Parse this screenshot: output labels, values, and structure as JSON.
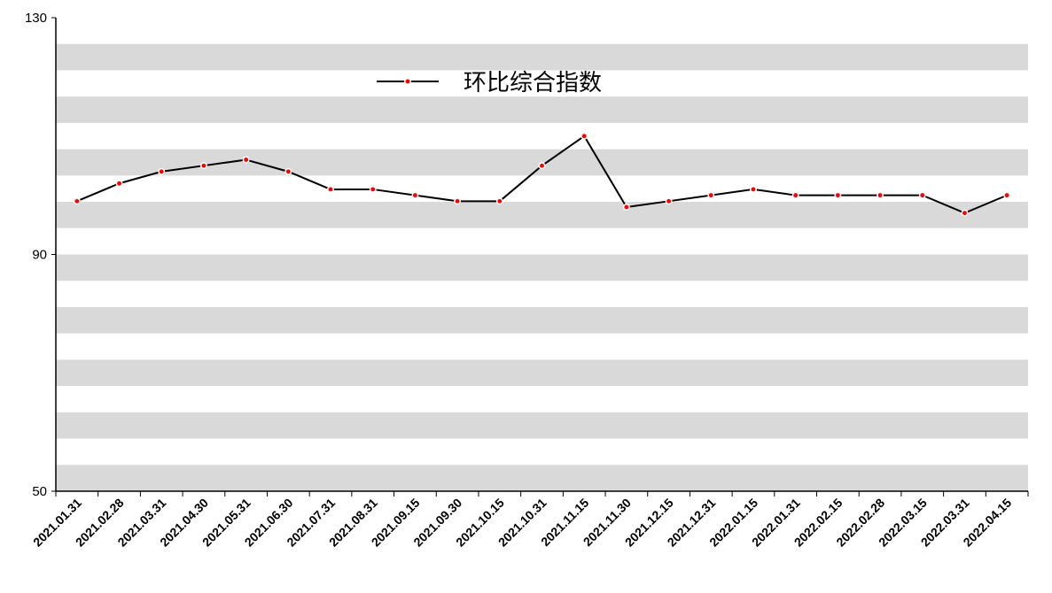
{
  "chart_data": {
    "type": "line",
    "categories": [
      "2021.01.31",
      "2021.02.28",
      "2021.03.31",
      "2021.04.30",
      "2021.05.31",
      "2021.06.30",
      "2021.07.31",
      "2021.08.31",
      "2021.09.15",
      "2021.09.30",
      "2021.10.15",
      "2021.10.31",
      "2021.11.15",
      "2021.11.30",
      "2021.12.15",
      "2021.12.31",
      "2022.01.15",
      "2022.01.31",
      "2022.02.15",
      "2022.02.28",
      "2022.03.15",
      "2022.03.31",
      "2022.04.15"
    ],
    "series": [
      {
        "name": "环比综合指数",
        "color": "#000000",
        "marker_color": "#ff0000",
        "values": [
          99,
          102,
          104,
          105,
          106,
          104,
          101,
          101,
          100,
          99,
          99,
          105,
          110,
          98,
          99,
          100,
          101,
          100,
          100,
          100,
          100,
          97,
          100
        ]
      }
    ],
    "ylim": [
      50,
      130
    ],
    "yticks": [
      50,
      90,
      130
    ],
    "legend": "top",
    "band_color": "#d9d9d9"
  }
}
